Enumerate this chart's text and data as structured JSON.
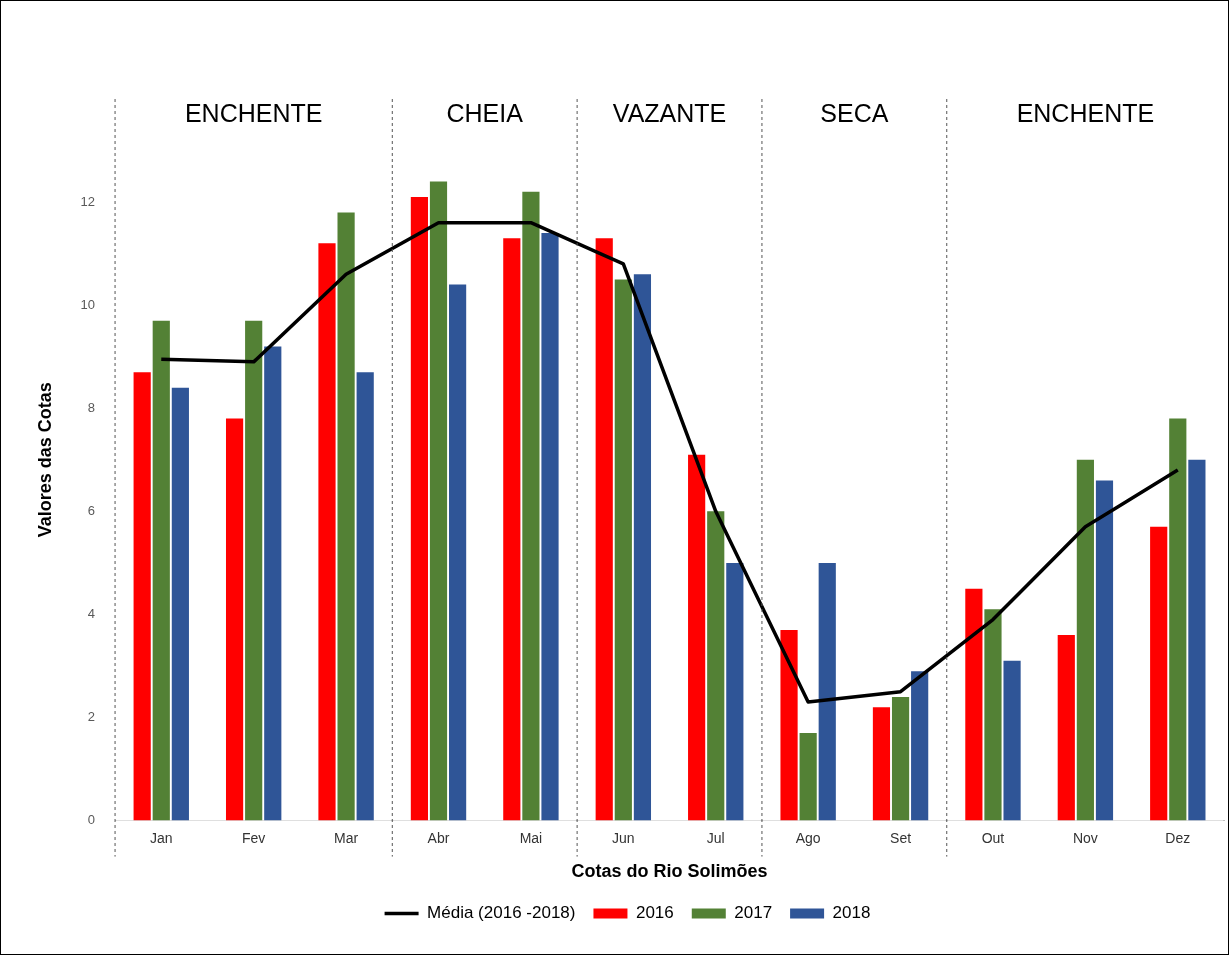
{
  "chart_data": {
    "type": "bar",
    "xlabel": "Cotas do Rio Solimões",
    "ylabel": "Valores das Cotas",
    "categories": [
      "Jan",
      "Fev",
      "Mar",
      "Abr",
      "Mai",
      "Jun",
      "Jul",
      "Ago",
      "Set",
      "Out",
      "Nov",
      "Dez"
    ],
    "series": [
      {
        "name": "2016",
        "color": "#ff0000",
        "values": [
          8.7,
          7.8,
          11.2,
          12.1,
          11.3,
          11.3,
          7.1,
          3.7,
          2.2,
          4.5,
          3.6,
          5.7
        ]
      },
      {
        "name": "2017",
        "color": "#538135",
        "values": [
          9.7,
          9.7,
          11.8,
          12.4,
          12.2,
          10.5,
          6.0,
          1.7,
          2.4,
          4.1,
          7.0,
          7.8
        ]
      },
      {
        "name": "2018",
        "color": "#2f5597",
        "values": [
          8.4,
          9.2,
          8.7,
          10.4,
          11.4,
          10.6,
          5.0,
          5.0,
          2.9,
          3.1,
          6.6,
          7.0
        ]
      },
      {
        "name": "Média (2016 -2018)",
        "type": "line",
        "color": "#000000",
        "values": [
          8.95,
          8.9,
          10.6,
          11.6,
          11.6,
          10.8,
          6.0,
          2.3,
          2.5,
          3.9,
          5.7,
          6.8
        ]
      }
    ],
    "ylim": [
      0,
      14
    ],
    "yticks": [
      0,
      2,
      4,
      6,
      8,
      10,
      12
    ],
    "grid": false,
    "legend": "bottom",
    "marker": "none",
    "line_style": "solid",
    "bands": [
      {
        "axis": "x",
        "from": "Jan",
        "to": "Mar",
        "label": "ENCHENTE",
        "color": "#ffffff"
      },
      {
        "axis": "x",
        "from": "Abr",
        "to": "Mai",
        "label": "CHEIA",
        "color": "#ffffff"
      },
      {
        "axis": "x",
        "from": "Jun",
        "to": "Jul",
        "label": "VAZANTE",
        "color": "#ffffff"
      },
      {
        "axis": "x",
        "from": "Ago",
        "to": "Set",
        "label": "SECA",
        "color": "#ffffff"
      },
      {
        "axis": "x",
        "from": "Out",
        "to": "Dez",
        "label": "ENCHENTE",
        "color": "#ffffff"
      }
    ]
  }
}
